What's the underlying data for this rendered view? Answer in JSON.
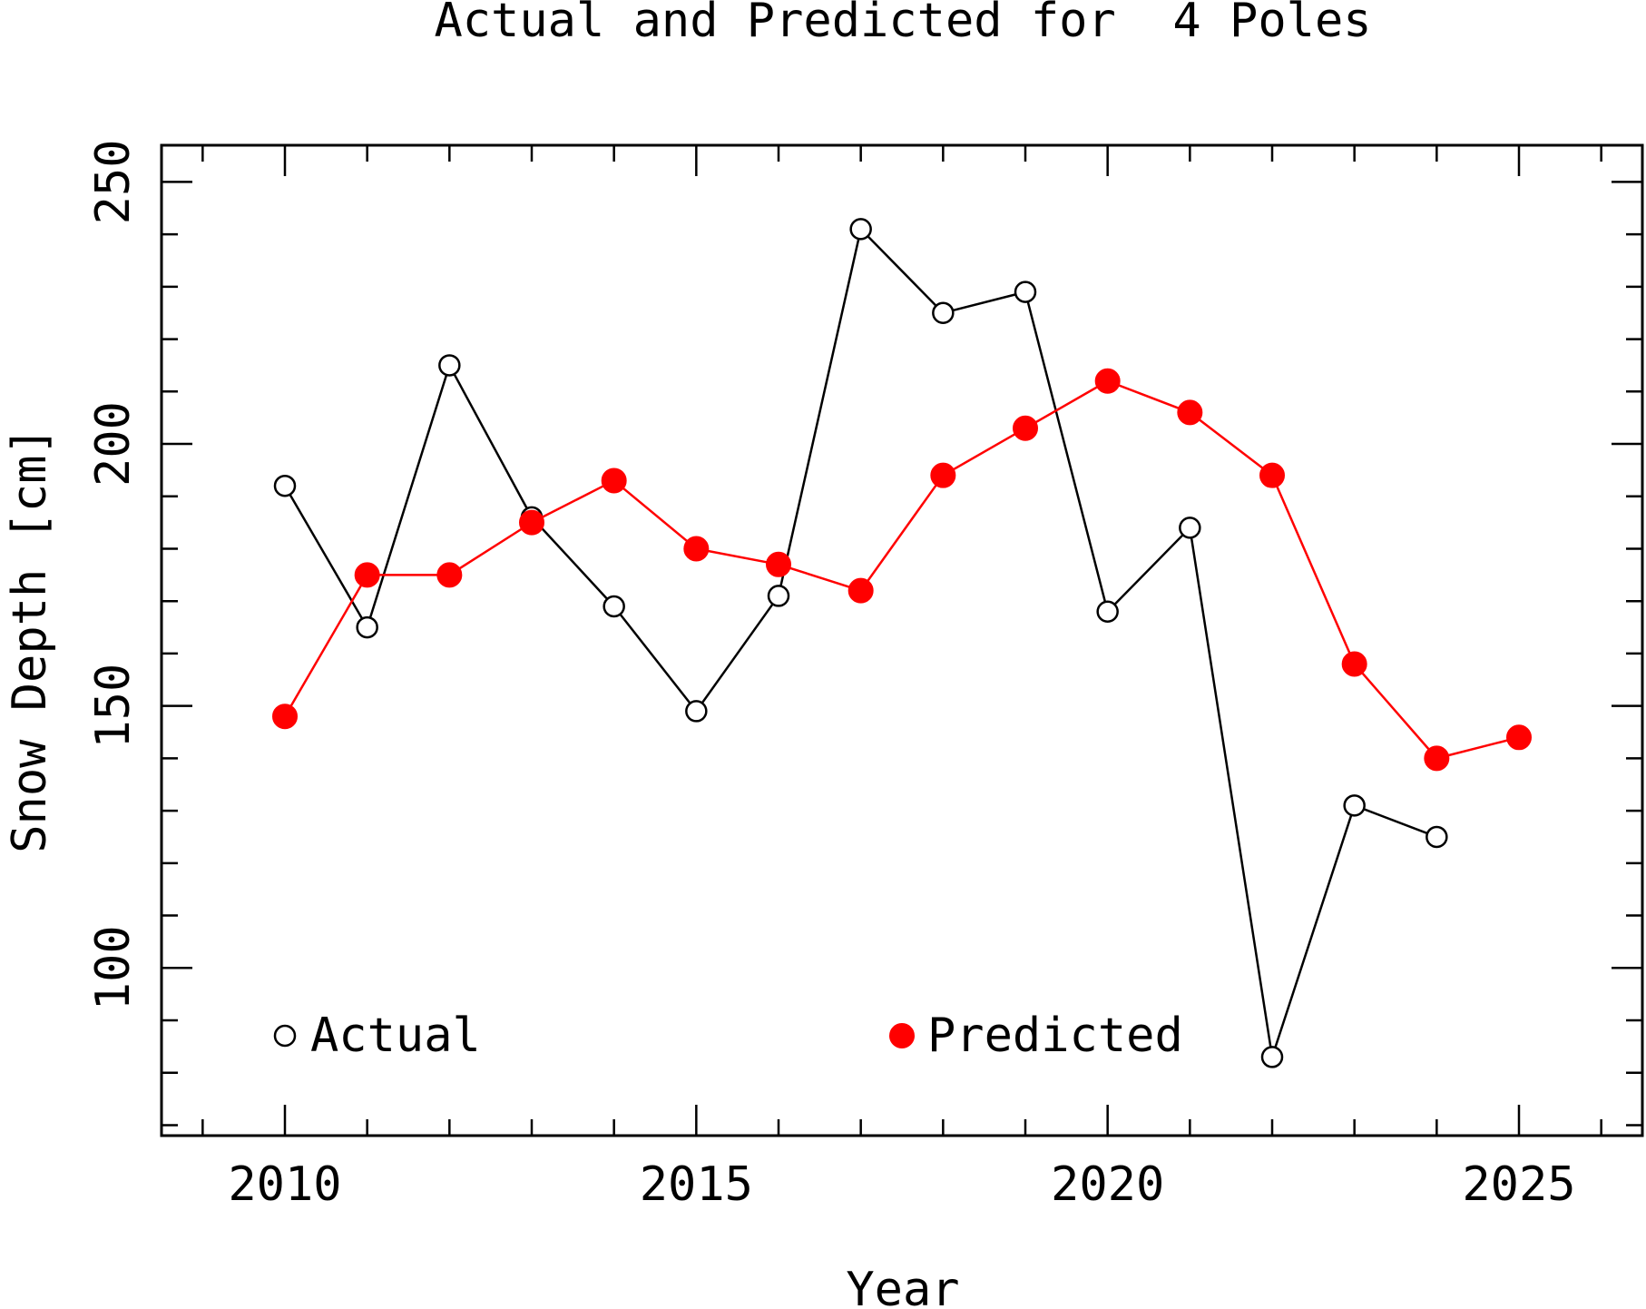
{
  "chart_data": {
    "type": "line",
    "title": "Actual and Predicted for  4 Poles",
    "xlabel": "Year",
    "ylabel": "Snow Depth [cm]",
    "xlim": [
      2008.5,
      2026.5
    ],
    "ylim": [
      68,
      257
    ],
    "x_major_ticks": [
      2010,
      2015,
      2020,
      2025
    ],
    "x_minor_step": 1,
    "y_major_ticks": [
      100,
      150,
      200,
      250
    ],
    "y_minor_step": 10,
    "series": [
      {
        "name": "Actual",
        "color": "#000000",
        "marker": "open-circle",
        "x": [
          2010,
          2011,
          2012,
          2013,
          2014,
          2015,
          2016,
          2017,
          2018,
          2019,
          2020,
          2021,
          2022,
          2023,
          2024
        ],
        "values": [
          192,
          165,
          215,
          186,
          169,
          149,
          171,
          241,
          225,
          229,
          168,
          184,
          83,
          131,
          125
        ]
      },
      {
        "name": "Predicted",
        "color": "#ff0000",
        "marker": "filled-circle",
        "x": [
          2010,
          2011,
          2012,
          2013,
          2014,
          2015,
          2016,
          2017,
          2018,
          2019,
          2020,
          2021,
          2022,
          2023,
          2024,
          2025
        ],
        "values": [
          148,
          175,
          175,
          185,
          193,
          180,
          177,
          172,
          194,
          203,
          212,
          206,
          194,
          158,
          140,
          144
        ]
      }
    ]
  }
}
